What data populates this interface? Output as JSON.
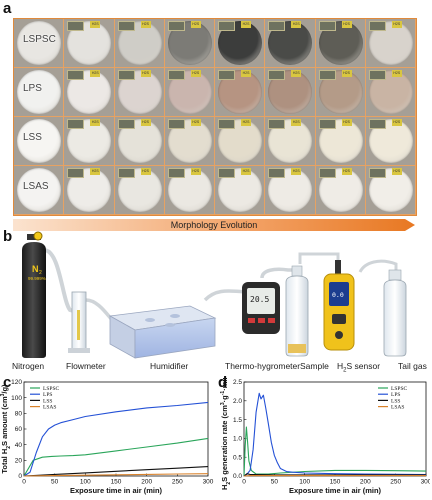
{
  "panels": {
    "a": "a",
    "b": "b",
    "c": "c",
    "d": "d"
  },
  "morphology": {
    "rows": [
      {
        "label": "LSPSC",
        "tones": [
          "#e8e6e2",
          "#e4e2de",
          "#cfcdc7",
          "#7c7b76",
          "#3c3d3c",
          "#4a4b48",
          "#5e5d56",
          "#d8d3cc"
        ]
      },
      {
        "label": "LPS",
        "tones": [
          "#f1f1ef",
          "#ece8e5",
          "#dcd4d0",
          "#cab5ae",
          "#b69482",
          "#ae9180",
          "#b49b88",
          "#c9b4a4"
        ]
      },
      {
        "label": "LSS",
        "tones": [
          "#f6f5f2",
          "#eceae4",
          "#e5e2d9",
          "#e3ddcf",
          "#e3dccb",
          "#e9e4d5",
          "#ede7d7",
          "#efe9da"
        ]
      },
      {
        "label": "LSAS",
        "tones": [
          "#f4f3f1",
          "#eeece8",
          "#e9e7e1",
          "#ebe8e2",
          "#ece9e3",
          "#eeebe5",
          "#efece6",
          "#f1eee8"
        ]
      }
    ],
    "sticker_text": "H2S",
    "arrow_label": "Morphology Evolution"
  },
  "setup": {
    "cylinder_gas": "N",
    "cylinder_gas_sub": "2",
    "cylinder_purity": "99.999%",
    "thermo_display": "20.5",
    "sensor_display": "0.0",
    "devices": [
      {
        "label": "Nitrogen"
      },
      {
        "label": "Flowmeter"
      },
      {
        "label": "Humidifier"
      },
      {
        "label": "Thermo-hygrometer"
      },
      {
        "label": "Sample"
      },
      {
        "label_pre": "H",
        "label_sub": "2",
        "label_post": "S sensor"
      },
      {
        "label": "Tail gas"
      }
    ]
  },
  "chart_data": [
    {
      "type": "line",
      "panel": "c",
      "title": "",
      "xlabel": "Exposure time in air (min)",
      "ylabel_parts": [
        "Total H",
        "2",
        "S amount (cm",
        "3",
        "/g)"
      ],
      "xlim": [
        0,
        300
      ],
      "ylim": [
        0,
        120
      ],
      "xticks": [
        0,
        50,
        100,
        150,
        200,
        250,
        300
      ],
      "yticks": [
        0,
        20,
        40,
        60,
        80,
        100,
        120
      ],
      "legend_position": "top-left",
      "series": [
        {
          "name": "LSPSC",
          "color": "#2aa55a",
          "x": [
            0,
            15,
            30,
            45,
            60,
            80,
            100,
            150,
            200,
            250,
            300
          ],
          "y": [
            0,
            20,
            24,
            25,
            25.5,
            26,
            27,
            32,
            37,
            42,
            48
          ]
        },
        {
          "name": "LPS",
          "color": "#2451d6",
          "x": [
            0,
            10,
            20,
            30,
            40,
            50,
            60,
            80,
            100,
            150,
            200,
            250,
            300
          ],
          "y": [
            0,
            5,
            30,
            50,
            60,
            65,
            68,
            72,
            76,
            82,
            87,
            90,
            94
          ]
        },
        {
          "name": "LSS",
          "color": "#111111",
          "x": [
            0,
            50,
            100,
            150,
            200,
            250,
            300
          ],
          "y": [
            0,
            2,
            4,
            6,
            8,
            10,
            12
          ]
        },
        {
          "name": "LSAS",
          "color": "#d9822b",
          "x": [
            0,
            50,
            100,
            150,
            200,
            250,
            300
          ],
          "y": [
            0,
            0.5,
            1,
            1.5,
            2,
            2.5,
            3
          ]
        }
      ]
    },
    {
      "type": "line",
      "panel": "d",
      "title": "",
      "xlabel": "Exposure time in air (min)",
      "ylabel_parts": [
        "H",
        "2",
        "S generation rate (cm",
        "3",
        "·g",
        "-1",
        "·min",
        "-1",
        ")"
      ],
      "xlim": [
        0,
        300
      ],
      "ylim": [
        0,
        2.5
      ],
      "xticks": [
        0,
        50,
        100,
        150,
        200,
        250,
        300
      ],
      "yticks": [
        0.0,
        0.5,
        1.0,
        1.5,
        2.0,
        2.5
      ],
      "legend_position": "top-right",
      "series": [
        {
          "name": "LSPSC",
          "color": "#2aa55a",
          "x": [
            0,
            2,
            4,
            6,
            8,
            12,
            20,
            40,
            60,
            100,
            150,
            200,
            250,
            300
          ],
          "y": [
            0,
            0.8,
            1.3,
            0.9,
            0.4,
            0.15,
            0.05,
            0.05,
            0.08,
            0.12,
            0.15,
            0.15,
            0.14,
            0.13
          ]
        },
        {
          "name": "LPS",
          "color": "#2451d6",
          "x": [
            0,
            5,
            10,
            15,
            20,
            25,
            28,
            32,
            36,
            40,
            45,
            50,
            55,
            60,
            70,
            80,
            100,
            150,
            200,
            300
          ],
          "y": [
            0,
            0.05,
            0.15,
            0.7,
            1.7,
            2.2,
            2.05,
            2.15,
            1.8,
            1.4,
            0.9,
            0.55,
            0.35,
            0.2,
            0.12,
            0.1,
            0.08,
            0.06,
            0.05,
            0.04
          ]
        },
        {
          "name": "LSS",
          "color": "#111111",
          "x": [
            0,
            5,
            10,
            50,
            100,
            200,
            300
          ],
          "y": [
            0,
            0.06,
            0.04,
            0.03,
            0.03,
            0.03,
            0.03
          ]
        },
        {
          "name": "LSAS",
          "color": "#d9822b",
          "x": [
            0,
            10,
            50,
            100,
            200,
            300
          ],
          "y": [
            0,
            0.01,
            0.01,
            0.01,
            0.01,
            0.01
          ]
        }
      ]
    }
  ]
}
